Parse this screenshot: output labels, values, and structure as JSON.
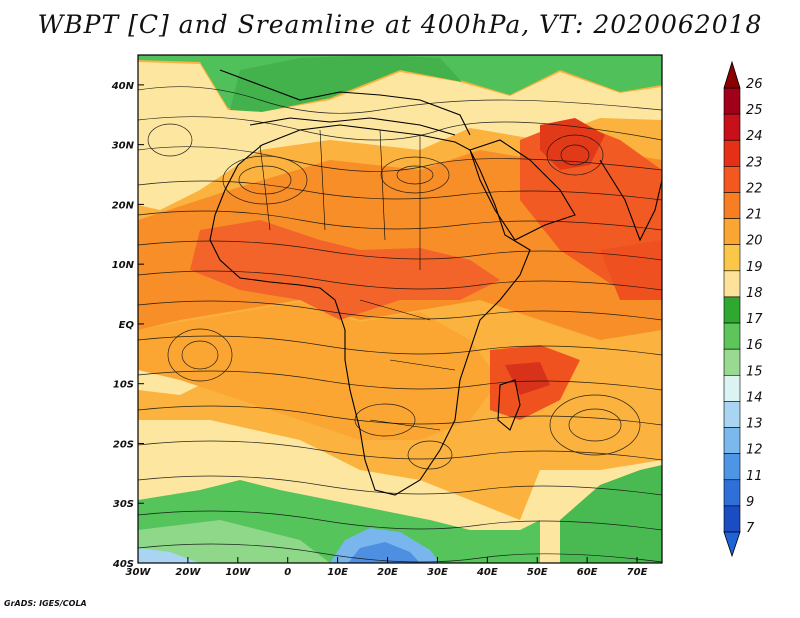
{
  "title": "WBPT [C] and Sreamline at 400hPa, VT: 2020062018",
  "credit": "GrADS: IGES/COLA",
  "map": {
    "lon_labels": [
      "30W",
      "20W",
      "10W",
      "0",
      "10E",
      "20E",
      "30E",
      "40E",
      "50E",
      "60E",
      "70E"
    ],
    "lat_labels": [
      "40N",
      "30N",
      "20N",
      "10N",
      "EQ",
      "10S",
      "20S",
      "30S",
      "40S"
    ],
    "lon_range": [
      -30,
      75
    ],
    "lat_range": [
      -40,
      45
    ]
  },
  "colorbar": {
    "labels": [
      "26",
      "25",
      "24",
      "23",
      "22",
      "21",
      "20",
      "19",
      "18",
      "17",
      "16",
      "15",
      "14",
      "13",
      "12",
      "11",
      "9",
      "7"
    ],
    "colors": [
      "#a0001a",
      "#c8101a",
      "#e53017",
      "#f25820",
      "#f77e22",
      "#fba632",
      "#fbc748",
      "#fde29a",
      "#2fa832",
      "#5ec55a",
      "#9ad991",
      "#dbf3f3",
      "#a9d4f2",
      "#7bb8ee",
      "#4f95e6",
      "#2f70d8",
      "#1a4cc3"
    ],
    "top_arrow_color": "#8b0000",
    "bottom_arrow_color": "#1e64d6"
  }
}
